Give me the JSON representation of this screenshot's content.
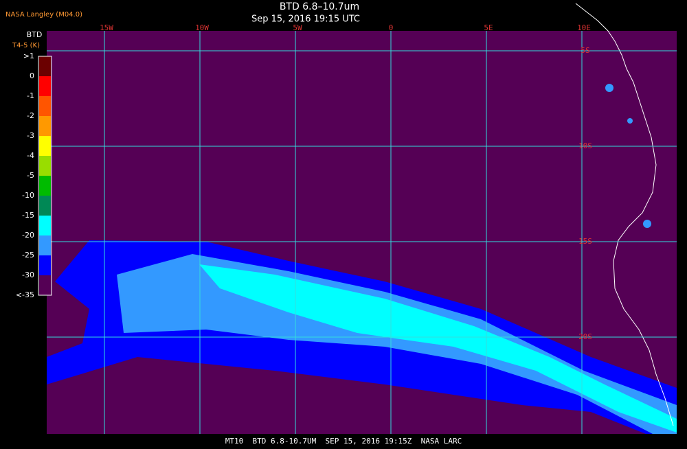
{
  "header": {
    "source": "NASA Langley (M04.0)",
    "title": "BTD 6.8–10.7um",
    "subtitle": "Sep 15, 2016 19:15 UTC"
  },
  "legend": {
    "title": "BTD",
    "unit": "T4-5 (K)",
    "labels": [
      ">1",
      "0",
      "-1",
      "-2",
      "-3",
      "-4",
      "-5",
      "-10",
      "-15",
      "-20",
      "-25",
      "-30",
      "<-35"
    ],
    "colors": [
      "#6b0000",
      "#ff0000",
      "#ff5500",
      "#ff9900",
      "#ffff00",
      "#99dd00",
      "#00bb00",
      "#008855",
      "#00ffff",
      "#3399ff",
      "#0000ff",
      "#550055"
    ]
  },
  "map": {
    "longitude_labels": [
      "15W",
      "10W",
      "5W",
      "0",
      "5E",
      "10E"
    ],
    "latitude_labels": [
      "5S",
      "10S",
      "15S",
      "20S"
    ]
  },
  "footer": "MT10  BTD 6.8-10.7UM  SEP 15, 2016 19:15Z  NASA LARC"
}
